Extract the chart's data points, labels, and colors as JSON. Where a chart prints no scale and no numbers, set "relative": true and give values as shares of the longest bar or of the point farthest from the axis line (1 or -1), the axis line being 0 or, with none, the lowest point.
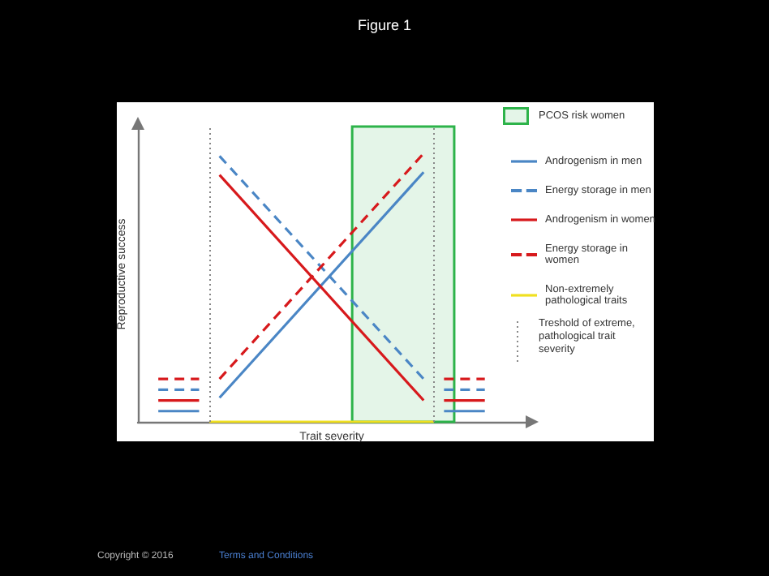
{
  "chart_data": {
    "type": "line",
    "title": "Figure 1",
    "xlabel": "Trait severity",
    "ylabel": "Reproductive success",
    "relative": true,
    "grid": false,
    "legend": "right",
    "categories": [
      null,
      null,
      null,
      null,
      null,
      null,
      null,
      null,
      null,
      null,
      null,
      null,
      null,
      null,
      null,
      null,
      null,
      null,
      null,
      null,
      null,
      null,
      null,
      null,
      null,
      null,
      null,
      null,
      null,
      null,
      null,
      null,
      null,
      null,
      null,
      null,
      null,
      null,
      null
    ],
    "series": [
      {
        "name": "Androgenism in men",
        "color": "#4a86c5",
        "line_style": "solid",
        "values": [
          null,
          null,
          null,
          null,
          null,
          null,
          null,
          null,
          0.09,
          null,
          null,
          null,
          null,
          null,
          null,
          null,
          null,
          null,
          null,
          null,
          null,
          null,
          null,
          null,
          null,
          null,
          null,
          null,
          0.93,
          null,
          null,
          null,
          null,
          null,
          null,
          null,
          null,
          null,
          null
        ]
      },
      {
        "name": "Energy storage in men",
        "color": "#4a86c5",
        "line_style": "dashed",
        "values": [
          null,
          null,
          null,
          null,
          null,
          null,
          null,
          null,
          0.99,
          null,
          null,
          null,
          null,
          null,
          null,
          null,
          null,
          null,
          null,
          null,
          null,
          null,
          null,
          null,
          null,
          null,
          null,
          null,
          0.16,
          null,
          null,
          null,
          null,
          null,
          null,
          null,
          null,
          null,
          null
        ]
      },
      {
        "name": "Androgenism in women",
        "color": "#d7191c",
        "line_style": "solid",
        "values": [
          null,
          null,
          null,
          null,
          null,
          null,
          null,
          null,
          0.92,
          null,
          null,
          null,
          null,
          null,
          null,
          null,
          null,
          null,
          null,
          null,
          null,
          null,
          null,
          null,
          null,
          null,
          null,
          null,
          0.08,
          null,
          null,
          null,
          null,
          null,
          null,
          null,
          null,
          null,
          null
        ]
      },
      {
        "name": "Energy storage in women",
        "color": "#d7191c",
        "line_style": "dashed",
        "values": [
          null,
          null,
          null,
          null,
          null,
          null,
          null,
          null,
          0.16,
          null,
          null,
          null,
          null,
          null,
          null,
          null,
          null,
          null,
          null,
          null,
          null,
          null,
          null,
          null,
          null,
          null,
          null,
          null,
          1,
          null,
          null,
          null,
          null,
          null,
          null,
          null,
          null,
          null,
          null
        ]
      },
      {
        "name": "Non-extremely pathological traits",
        "color": "#f0e020",
        "line_style": "solid",
        "values": [
          null,
          null,
          null,
          null,
          null,
          null,
          null,
          0,
          null,
          null,
          null,
          null,
          null,
          null,
          null,
          null,
          null,
          null,
          null,
          null,
          null,
          null,
          null,
          null,
          null,
          null,
          null,
          null,
          null,
          0,
          null,
          null,
          null,
          null,
          null,
          null,
          null,
          null,
          null
        ]
      },
      {
        "color": "#4a86c5",
        "line_style": "solid",
        "values": [
          null,
          null,
          0.04,
          null,
          null,
          null,
          0.04,
          null,
          null,
          null,
          null,
          null,
          null,
          null,
          null,
          null,
          null,
          null,
          null,
          null,
          null,
          null,
          null,
          null,
          null,
          null,
          null,
          null,
          null,
          null,
          null,
          null,
          null,
          null,
          null,
          null,
          null,
          null,
          null
        ]
      },
      {
        "color": "#4a86c5",
        "line_style": "dashed",
        "values": [
          null,
          null,
          0.12,
          null,
          null,
          null,
          0.12,
          null,
          null,
          null,
          null,
          null,
          null,
          null,
          null,
          null,
          null,
          null,
          null,
          null,
          null,
          null,
          null,
          null,
          null,
          null,
          null,
          null,
          null,
          null,
          null,
          null,
          null,
          null,
          null,
          null,
          null,
          null,
          null
        ]
      },
      {
        "color": "#d7191c",
        "line_style": "solid",
        "values": [
          null,
          null,
          0.08,
          null,
          null,
          null,
          0.08,
          null,
          null,
          null,
          null,
          null,
          null,
          null,
          null,
          null,
          null,
          null,
          null,
          null,
          null,
          null,
          null,
          null,
          null,
          null,
          null,
          null,
          null,
          null,
          null,
          null,
          null,
          null,
          null,
          null,
          null,
          null,
          null
        ]
      },
      {
        "color": "#d7191c",
        "line_style": "dashed",
        "values": [
          null,
          null,
          0.16,
          null,
          null,
          null,
          0.16,
          null,
          null,
          null,
          null,
          null,
          null,
          null,
          null,
          null,
          null,
          null,
          null,
          null,
          null,
          null,
          null,
          null,
          null,
          null,
          null,
          null,
          null,
          null,
          null,
          null,
          null,
          null,
          null,
          null,
          null,
          null,
          null
        ]
      },
      {
        "color": "#4a86c5",
        "line_style": "solid",
        "values": [
          null,
          null,
          null,
          null,
          null,
          null,
          null,
          null,
          null,
          null,
          null,
          null,
          null,
          null,
          null,
          null,
          null,
          null,
          null,
          null,
          null,
          null,
          null,
          null,
          null,
          null,
          null,
          null,
          null,
          null,
          0.04,
          null,
          null,
          null,
          0.04,
          null,
          null,
          null,
          null
        ]
      },
      {
        "color": "#4a86c5",
        "line_style": "dashed",
        "values": [
          null,
          null,
          null,
          null,
          null,
          null,
          null,
          null,
          null,
          null,
          null,
          null,
          null,
          null,
          null,
          null,
          null,
          null,
          null,
          null,
          null,
          null,
          null,
          null,
          null,
          null,
          null,
          null,
          null,
          null,
          0.12,
          null,
          null,
          null,
          0.12,
          null,
          null,
          null,
          null
        ]
      },
      {
        "color": "#d7191c",
        "line_style": "solid",
        "values": [
          null,
          null,
          null,
          null,
          null,
          null,
          null,
          null,
          null,
          null,
          null,
          null,
          null,
          null,
          null,
          null,
          null,
          null,
          null,
          null,
          null,
          null,
          null,
          null,
          null,
          null,
          null,
          null,
          null,
          null,
          0.08,
          null,
          null,
          null,
          0.08,
          null,
          null,
          null,
          null
        ]
      },
      {
        "color": "#d7191c",
        "line_style": "dashed",
        "values": [
          null,
          null,
          null,
          null,
          null,
          null,
          null,
          null,
          null,
          null,
          null,
          null,
          null,
          null,
          null,
          null,
          null,
          null,
          null,
          null,
          null,
          null,
          null,
          null,
          null,
          null,
          null,
          null,
          null,
          null,
          0.16,
          null,
          null,
          null,
          0.16,
          null,
          null,
          null,
          null
        ]
      }
    ],
    "annotations": [
      "PCOS risk women",
      "Treshold of extreme, pathological trait severity",
      "Copyright © 2016",
      "Terms and Conditions"
    ]
  }
}
